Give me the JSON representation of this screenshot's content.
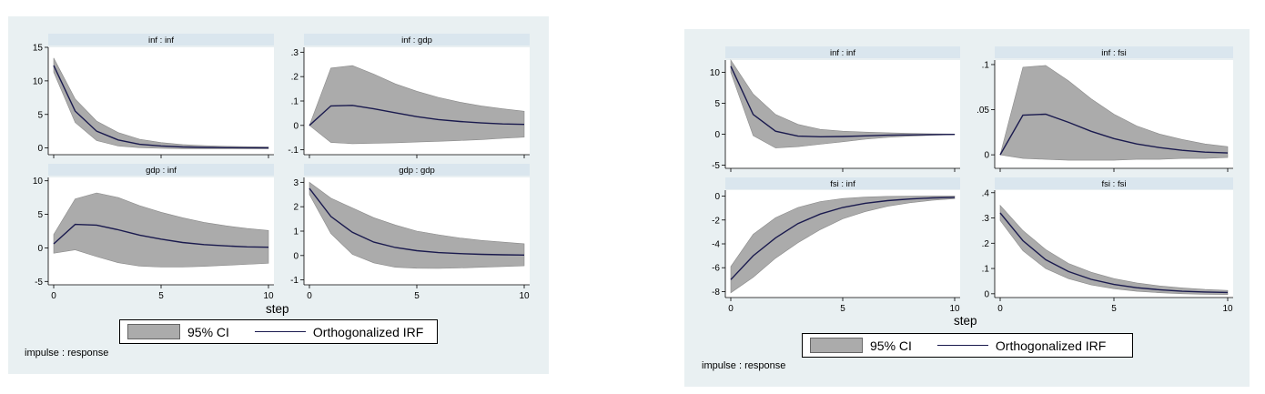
{
  "chart_data": [
    {
      "type": "line",
      "figure": "left",
      "xlabel": "step",
      "note": "impulse : response",
      "legend": {
        "ci_label": "95% CI",
        "irf_label": "Orthogonalized IRF"
      },
      "colors": {
        "band": "#ababab",
        "line": "#1a1a4e",
        "header": "#dae6ee",
        "background": "#e9f0f2"
      },
      "xlim": [
        0,
        10
      ],
      "xticks": [
        0,
        5,
        10
      ],
      "panels": [
        {
          "title": "inf : inf",
          "ylim": [
            -1,
            15
          ],
          "yticks": [
            0,
            5,
            10,
            15
          ],
          "ytick_labels": [
            "0",
            "5",
            "10",
            "15"
          ],
          "x": [
            0,
            1,
            2,
            3,
            4,
            5,
            6,
            7,
            8,
            9,
            10
          ],
          "irf": [
            12.3,
            5.5,
            2.5,
            1.2,
            0.55,
            0.3,
            0.15,
            0.08,
            0.05,
            0.03,
            0.02
          ],
          "lower": [
            11.3,
            3.8,
            1.1,
            0.3,
            0.05,
            -0.05,
            -0.1,
            -0.1,
            -0.1,
            -0.1,
            -0.1
          ],
          "upper": [
            13.4,
            7.3,
            4.0,
            2.3,
            1.3,
            0.8,
            0.5,
            0.35,
            0.25,
            0.2,
            0.15
          ]
        },
        {
          "title": "inf : gdp",
          "ylim": [
            -0.12,
            0.32
          ],
          "yticks": [
            -0.1,
            0,
            0.1,
            0.2,
            0.3
          ],
          "ytick_labels": [
            "-.1",
            "0",
            ".1",
            ".2",
            ".3"
          ],
          "x": [
            0,
            1,
            2,
            3,
            4,
            5,
            6,
            7,
            8,
            9,
            10
          ],
          "irf": [
            0,
            0.08,
            0.082,
            0.068,
            0.052,
            0.036,
            0.024,
            0.016,
            0.01,
            0.006,
            0.004
          ],
          "lower": [
            0,
            -0.07,
            -0.075,
            -0.073,
            -0.071,
            -0.068,
            -0.065,
            -0.062,
            -0.058,
            -0.053,
            -0.048
          ],
          "upper": [
            0,
            0.235,
            0.245,
            0.21,
            0.17,
            0.14,
            0.115,
            0.095,
            0.08,
            0.068,
            0.058
          ]
        },
        {
          "title": "gdp : inf",
          "ylim": [
            -5.5,
            10.5
          ],
          "yticks": [
            -5,
            0,
            5,
            10
          ],
          "ytick_labels": [
            "-5",
            "0",
            "5",
            "10"
          ],
          "x": [
            0,
            1,
            2,
            3,
            4,
            5,
            6,
            7,
            8,
            9,
            10
          ],
          "irf": [
            0.6,
            3.5,
            3.4,
            2.7,
            1.9,
            1.3,
            0.8,
            0.5,
            0.3,
            0.15,
            0.1
          ],
          "lower": [
            -0.8,
            -0.3,
            -1.3,
            -2.2,
            -2.7,
            -2.85,
            -2.85,
            -2.75,
            -2.6,
            -2.45,
            -2.3
          ],
          "upper": [
            2.0,
            7.3,
            8.2,
            7.5,
            6.3,
            5.3,
            4.5,
            3.8,
            3.3,
            2.9,
            2.6
          ]
        },
        {
          "title": "gdp : gdp",
          "ylim": [
            -1.2,
            3.2
          ],
          "yticks": [
            -1,
            0,
            1,
            2,
            3
          ],
          "ytick_labels": [
            "-1",
            "0",
            "1",
            "2",
            "3"
          ],
          "x": [
            0,
            1,
            2,
            3,
            4,
            5,
            6,
            7,
            8,
            9,
            10
          ],
          "irf": [
            2.75,
            1.6,
            0.95,
            0.55,
            0.33,
            0.2,
            0.12,
            0.08,
            0.05,
            0.03,
            0.02
          ],
          "lower": [
            2.5,
            0.9,
            0.05,
            -0.3,
            -0.48,
            -0.52,
            -0.53,
            -0.51,
            -0.48,
            -0.45,
            -0.42
          ],
          "upper": [
            3.0,
            2.35,
            1.95,
            1.55,
            1.25,
            1.0,
            0.85,
            0.72,
            0.62,
            0.55,
            0.48
          ]
        }
      ]
    },
    {
      "type": "line",
      "figure": "right",
      "xlabel": "step",
      "note": "impulse : response",
      "legend": {
        "ci_label": "95% CI",
        "irf_label": "Orthogonalized IRF"
      },
      "colors": {
        "band": "#ababab",
        "line": "#1a1a4e",
        "header": "#dae6ee",
        "background": "#e9f0f2"
      },
      "xlim": [
        0,
        10
      ],
      "xticks": [
        0,
        5,
        10
      ],
      "panels": [
        {
          "title": "inf : inf",
          "ylim": [
            -5.5,
            12
          ],
          "yticks": [
            -5,
            0,
            5,
            10
          ],
          "ytick_labels": [
            "-5",
            "0",
            "5",
            "10"
          ],
          "x": [
            0,
            1,
            2,
            3,
            4,
            5,
            6,
            7,
            8,
            9,
            10
          ],
          "irf": [
            11.0,
            3.2,
            0.5,
            -0.3,
            -0.4,
            -0.35,
            -0.25,
            -0.15,
            -0.1,
            -0.05,
            -0.02
          ],
          "lower": [
            10.0,
            -0.2,
            -2.2,
            -2.0,
            -1.6,
            -1.2,
            -0.8,
            -0.5,
            -0.3,
            -0.15,
            -0.05
          ],
          "upper": [
            12.0,
            6.5,
            3.2,
            1.6,
            0.8,
            0.5,
            0.35,
            0.25,
            0.15,
            0.08,
            0.04
          ]
        },
        {
          "title": "inf : fsi",
          "ylim": [
            -0.015,
            0.105
          ],
          "yticks": [
            0,
            0.05,
            0.1
          ],
          "ytick_labels": [
            "0",
            ".05",
            ".1"
          ],
          "x": [
            0,
            1,
            2,
            3,
            4,
            5,
            6,
            7,
            8,
            9,
            10
          ],
          "irf": [
            0,
            0.044,
            0.045,
            0.036,
            0.026,
            0.018,
            0.012,
            0.008,
            0.005,
            0.003,
            0.002
          ],
          "lower": [
            0,
            -0.004,
            -0.005,
            -0.006,
            -0.006,
            -0.006,
            -0.005,
            -0.005,
            -0.004,
            -0.004,
            -0.003
          ],
          "upper": [
            0,
            0.097,
            0.099,
            0.082,
            0.062,
            0.045,
            0.032,
            0.023,
            0.017,
            0.012,
            0.009
          ]
        },
        {
          "title": "fsi : inf",
          "ylim": [
            -8.5,
            0.5
          ],
          "yticks": [
            -8,
            -6,
            -4,
            -2,
            0
          ],
          "ytick_labels": [
            "-8",
            "-6",
            "-4",
            "-2",
            "0"
          ],
          "x": [
            0,
            1,
            2,
            3,
            4,
            5,
            6,
            7,
            8,
            9,
            10
          ],
          "irf": [
            -7.0,
            -5.0,
            -3.5,
            -2.3,
            -1.5,
            -0.95,
            -0.6,
            -0.38,
            -0.24,
            -0.15,
            -0.1
          ],
          "lower": [
            -8.1,
            -6.8,
            -5.2,
            -3.9,
            -2.8,
            -1.9,
            -1.3,
            -0.85,
            -0.55,
            -0.35,
            -0.22
          ],
          "upper": [
            -5.9,
            -3.2,
            -1.8,
            -0.95,
            -0.45,
            -0.2,
            -0.08,
            -0.02,
            0.0,
            0.01,
            0.01
          ]
        },
        {
          "title": "fsi : fsi",
          "ylim": [
            -0.015,
            0.41
          ],
          "yticks": [
            0,
            0.1,
            0.2,
            0.3,
            0.4
          ],
          "ytick_labels": [
            "0",
            ".1",
            ".2",
            ".3",
            ".4"
          ],
          "x": [
            0,
            1,
            2,
            3,
            4,
            5,
            6,
            7,
            8,
            9,
            10
          ],
          "irf": [
            0.32,
            0.21,
            0.135,
            0.088,
            0.057,
            0.037,
            0.024,
            0.016,
            0.01,
            0.007,
            0.005
          ],
          "lower": [
            0.29,
            0.17,
            0.1,
            0.06,
            0.035,
            0.02,
            0.01,
            0.004,
            0.0,
            -0.002,
            -0.003
          ],
          "upper": [
            0.35,
            0.25,
            0.175,
            0.12,
            0.085,
            0.06,
            0.043,
            0.031,
            0.023,
            0.017,
            0.013
          ]
        }
      ]
    }
  ]
}
